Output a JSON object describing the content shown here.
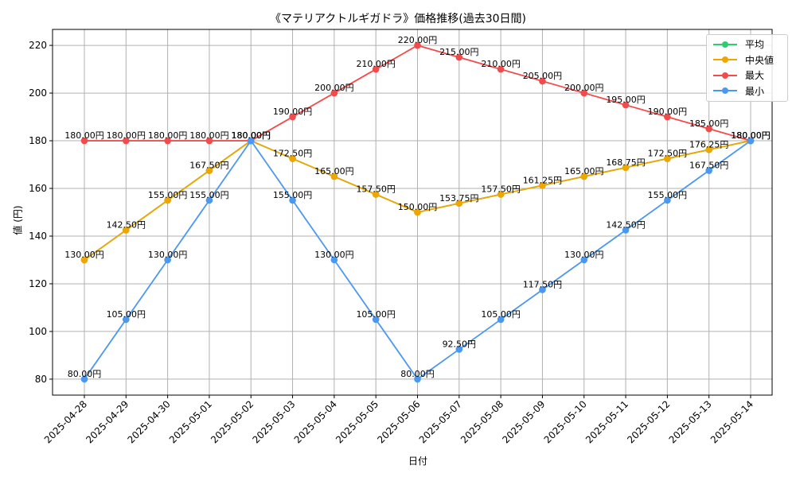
{
  "chart_data": {
    "type": "line",
    "title": "《マテリアクトルギガドラ》価格推移(過去30日間)",
    "xlabel": "日付",
    "ylabel": "値 (円)",
    "x": [
      "2025-04-28",
      "2025-04-29",
      "2025-04-30",
      "2025-05-01",
      "2025-05-02",
      "2025-05-03",
      "2025-05-04",
      "2025-05-05",
      "2025-05-06",
      "2025-05-07",
      "2025-05-08",
      "2025-05-09",
      "2025-05-10",
      "2025-05-11",
      "2025-05-12",
      "2025-05-13",
      "2025-05-14"
    ],
    "ylim": [
      73.3,
      226.7
    ],
    "yticks": [
      80,
      100,
      120,
      140,
      160,
      180,
      200,
      220
    ],
    "grid": true,
    "legend_position": "top-right",
    "label_suffix": "円",
    "series": [
      {
        "name": "平均",
        "color": "#2ecc71",
        "show_labels": false,
        "values": [
          130,
          142.5,
          155,
          167.5,
          180,
          172.5,
          165,
          157.5,
          150,
          153.75,
          157.5,
          161.25,
          165,
          168.75,
          172.5,
          176.25,
          180
        ]
      },
      {
        "name": "中央値",
        "color": "#f0a500",
        "show_labels": true,
        "values": [
          130,
          142.5,
          155,
          167.5,
          180,
          172.5,
          165,
          157.5,
          150,
          153.75,
          157.5,
          161.25,
          165,
          168.75,
          172.5,
          176.25,
          180
        ]
      },
      {
        "name": "最大",
        "color": "#f24b4b",
        "show_labels": true,
        "values": [
          180,
          180,
          180,
          180,
          180,
          190,
          200,
          210,
          220,
          215,
          210,
          205,
          200,
          195,
          190,
          185,
          180
        ]
      },
      {
        "name": "最小",
        "color": "#4a98f0",
        "show_labels": true,
        "values": [
          80,
          105,
          130,
          155,
          180,
          155,
          130,
          105,
          80,
          92.5,
          105,
          117.5,
          130,
          142.5,
          155,
          167.5,
          180
        ]
      }
    ]
  }
}
